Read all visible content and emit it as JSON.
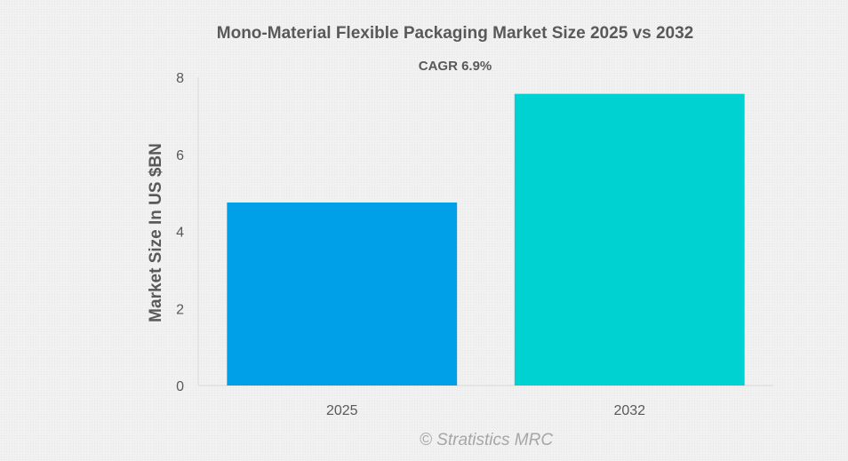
{
  "chart_data": {
    "type": "bar",
    "title": "Mono-Material Flexible Packaging Market Size 2025 vs 2032",
    "annotation": "CAGR 6.9%",
    "xlabel": "",
    "ylabel": "Market Size In US $BN",
    "categories": [
      "2025",
      "2032"
    ],
    "values": [
      4.75,
      7.57
    ],
    "colors": [
      "#00a0e9",
      "#00d2d2"
    ],
    "ylim": [
      0,
      8
    ],
    "yticks": [
      "0",
      "2",
      "4",
      "6",
      "8"
    ],
    "grid": false,
    "legend": "none"
  },
  "watermark": "© Stratistics MRC"
}
